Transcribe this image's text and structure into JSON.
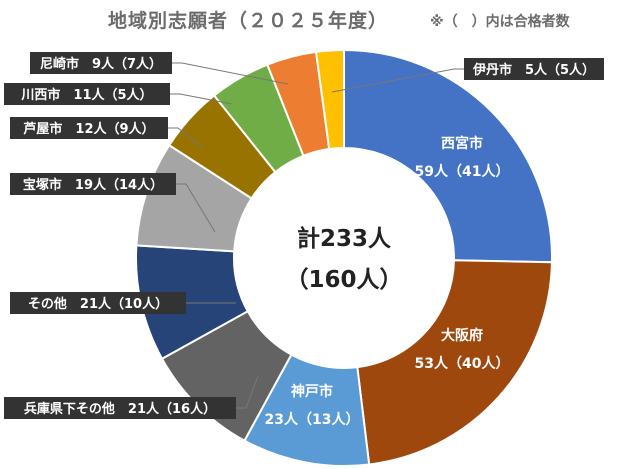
{
  "title": "地域別志願者（２０２５年度）",
  "note": "※（　）内は合格者数",
  "chart_data": {
    "type": "pie",
    "title": "地域別志願者（２０２５年度）",
    "center_total": "計233人",
    "center_passed": "（160人）",
    "slices": [
      {
        "name": "西宮市",
        "value": 59,
        "passed": 41,
        "label": "59人（41人）",
        "color": "#4472C4"
      },
      {
        "name": "大阪府",
        "value": 53,
        "passed": 40,
        "label": "53人（40人）",
        "color": "#9E480E"
      },
      {
        "name": "神戸市",
        "value": 23,
        "passed": 13,
        "label": "23人（13人）",
        "color": "#5B9BD5"
      },
      {
        "name": "兵庫県下その他",
        "value": 21,
        "passed": 16,
        "label": "兵庫県下その他　21人（16人）",
        "color": "#636363"
      },
      {
        "name": "その他",
        "value": 21,
        "passed": 10,
        "label": "その他　21人（10人）",
        "color": "#264478"
      },
      {
        "name": "宝塚市",
        "value": 19,
        "passed": 14,
        "label": "宝塚市　19人（14人）",
        "color": "#A5A5A5"
      },
      {
        "name": "芦屋市",
        "value": 12,
        "passed": 9,
        "label": "芦屋市　12人（9人）",
        "color": "#997300"
      },
      {
        "name": "川西市",
        "value": 11,
        "passed": 5,
        "label": "川西市　11人（5人）",
        "color": "#70AD47"
      },
      {
        "name": "尼崎市",
        "value": 9,
        "passed": 7,
        "label": "尼崎市　9人（7人）",
        "color": "#ED7D31"
      },
      {
        "name": "伊丹市",
        "value": 5,
        "passed": 5,
        "label": "伊丹市　5人（5人）",
        "color": "#FFC000"
      }
    ]
  }
}
